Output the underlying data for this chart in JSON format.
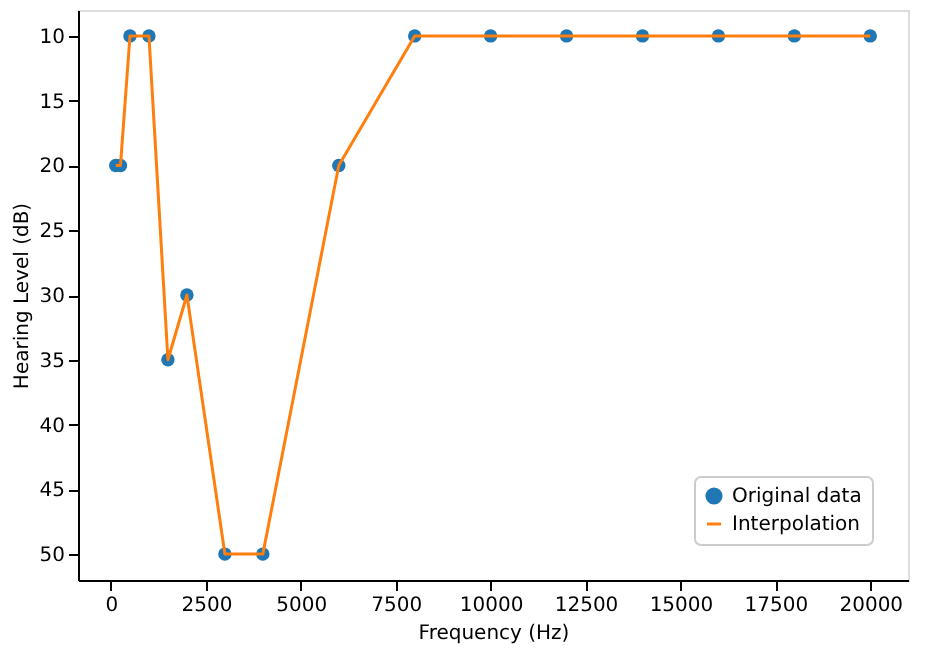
{
  "chart_data": {
    "type": "line",
    "xlabel": "Frequency (Hz)",
    "ylabel": "Hearing Level (dB)",
    "xlim": [
      -869,
      20994
    ],
    "ylim": [
      52,
      8
    ],
    "xticks": [
      0,
      2500,
      5000,
      7500,
      10000,
      12500,
      15000,
      17500,
      20000
    ],
    "yticks": [
      10,
      15,
      20,
      25,
      30,
      35,
      40,
      45,
      50
    ],
    "grid": false,
    "legend": "bottom right",
    "series": [
      {
        "name": "Original data",
        "type": "scatter",
        "marker": "circle",
        "color": "#1f77b4",
        "x": [
          125,
          250,
          500,
          1000,
          1500,
          2000,
          3000,
          4000,
          6000,
          8000,
          10000,
          12000,
          14000,
          16000,
          18000,
          20000
        ],
        "values": [
          20,
          20,
          10,
          10,
          35,
          30,
          50,
          50,
          20,
          10,
          10,
          10,
          10,
          10,
          10,
          10
        ]
      },
      {
        "name": "Interpolation",
        "type": "line",
        "color": "#ff7f0e",
        "x": [
          125,
          250,
          500,
          1000,
          1500,
          2000,
          3000,
          4000,
          6000,
          8000,
          10000,
          12000,
          14000,
          16000,
          18000,
          20000
        ],
        "values": [
          20,
          20,
          10,
          10,
          35,
          30,
          50,
          50,
          20,
          10,
          10,
          10,
          10,
          10,
          10,
          10
        ]
      }
    ]
  }
}
